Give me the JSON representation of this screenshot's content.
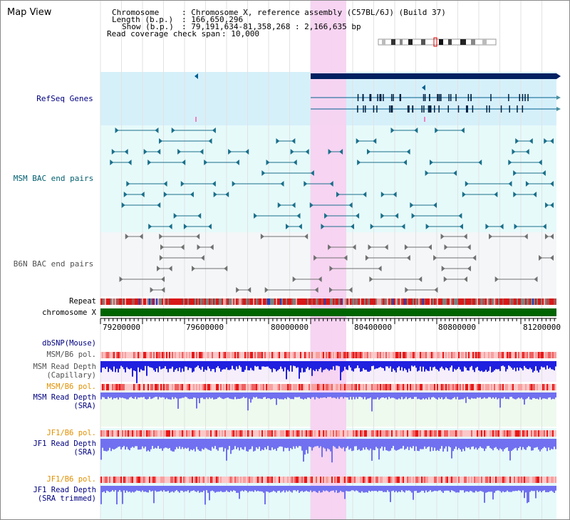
{
  "app": {
    "title": "Map View"
  },
  "info": {
    "chromosome_key": "Chromosome",
    "chromosome_val": ": Chromosome X, reference assembly (C57BL/6J) (Build 37)",
    "length_key": "Length (b.p.)",
    "length_val": ": 166,650,296",
    "show_key": "Show (b.p.)",
    "show_val": ": 79,191,634-81,358,268 : 2,166,635 bp",
    "coverage_key": "Read coverage check span",
    "coverage_val": ": 10,000"
  },
  "tracks": {
    "refseq": "RefSeq Genes",
    "msm_bac": "MSM BAC end pairs",
    "b6n_bac": "B6N BAC end pairs",
    "repeat": "Repeat",
    "chromosome": "chromosome X",
    "dbsnp": "dbSNP(Mouse)",
    "msm_b6_pol_1": "MSM/B6 pol.",
    "msm_depth_cap": "MSM Read Depth\n(Capillary)",
    "msm_b6_pol_2": "MSM/B6 pol.",
    "msm_depth_sra": "MSM Read Depth\n(SRA)",
    "jf1_b6_pol_1": "JF1/B6 pol.",
    "jf1_depth_sra": "JF1 Read Depth\n(SRA)",
    "jf1_b6_pol_2": "JF1/B6 pol.",
    "jf1_depth_trim": "JF1 Read Depth\n(SRA trimmed)"
  },
  "axis": {
    "ticks": [
      "79200000",
      "79600000",
      "80000000",
      "80400000",
      "80800000",
      "81200000"
    ]
  },
  "colors": {
    "navy": "#000080",
    "teal": "#005f6f",
    "gray_label": "#505050",
    "orange": "#e09000",
    "highlight": "#f7d2f1",
    "refseq_bg": "#d6f0fa",
    "bac_bg": "#e6fafa",
    "b6n_bg": "#f4f6f8",
    "chromosome_bar": "#006400",
    "depth_capillary": "#2020e0",
    "depth_sra": "#7070f0"
  }
}
